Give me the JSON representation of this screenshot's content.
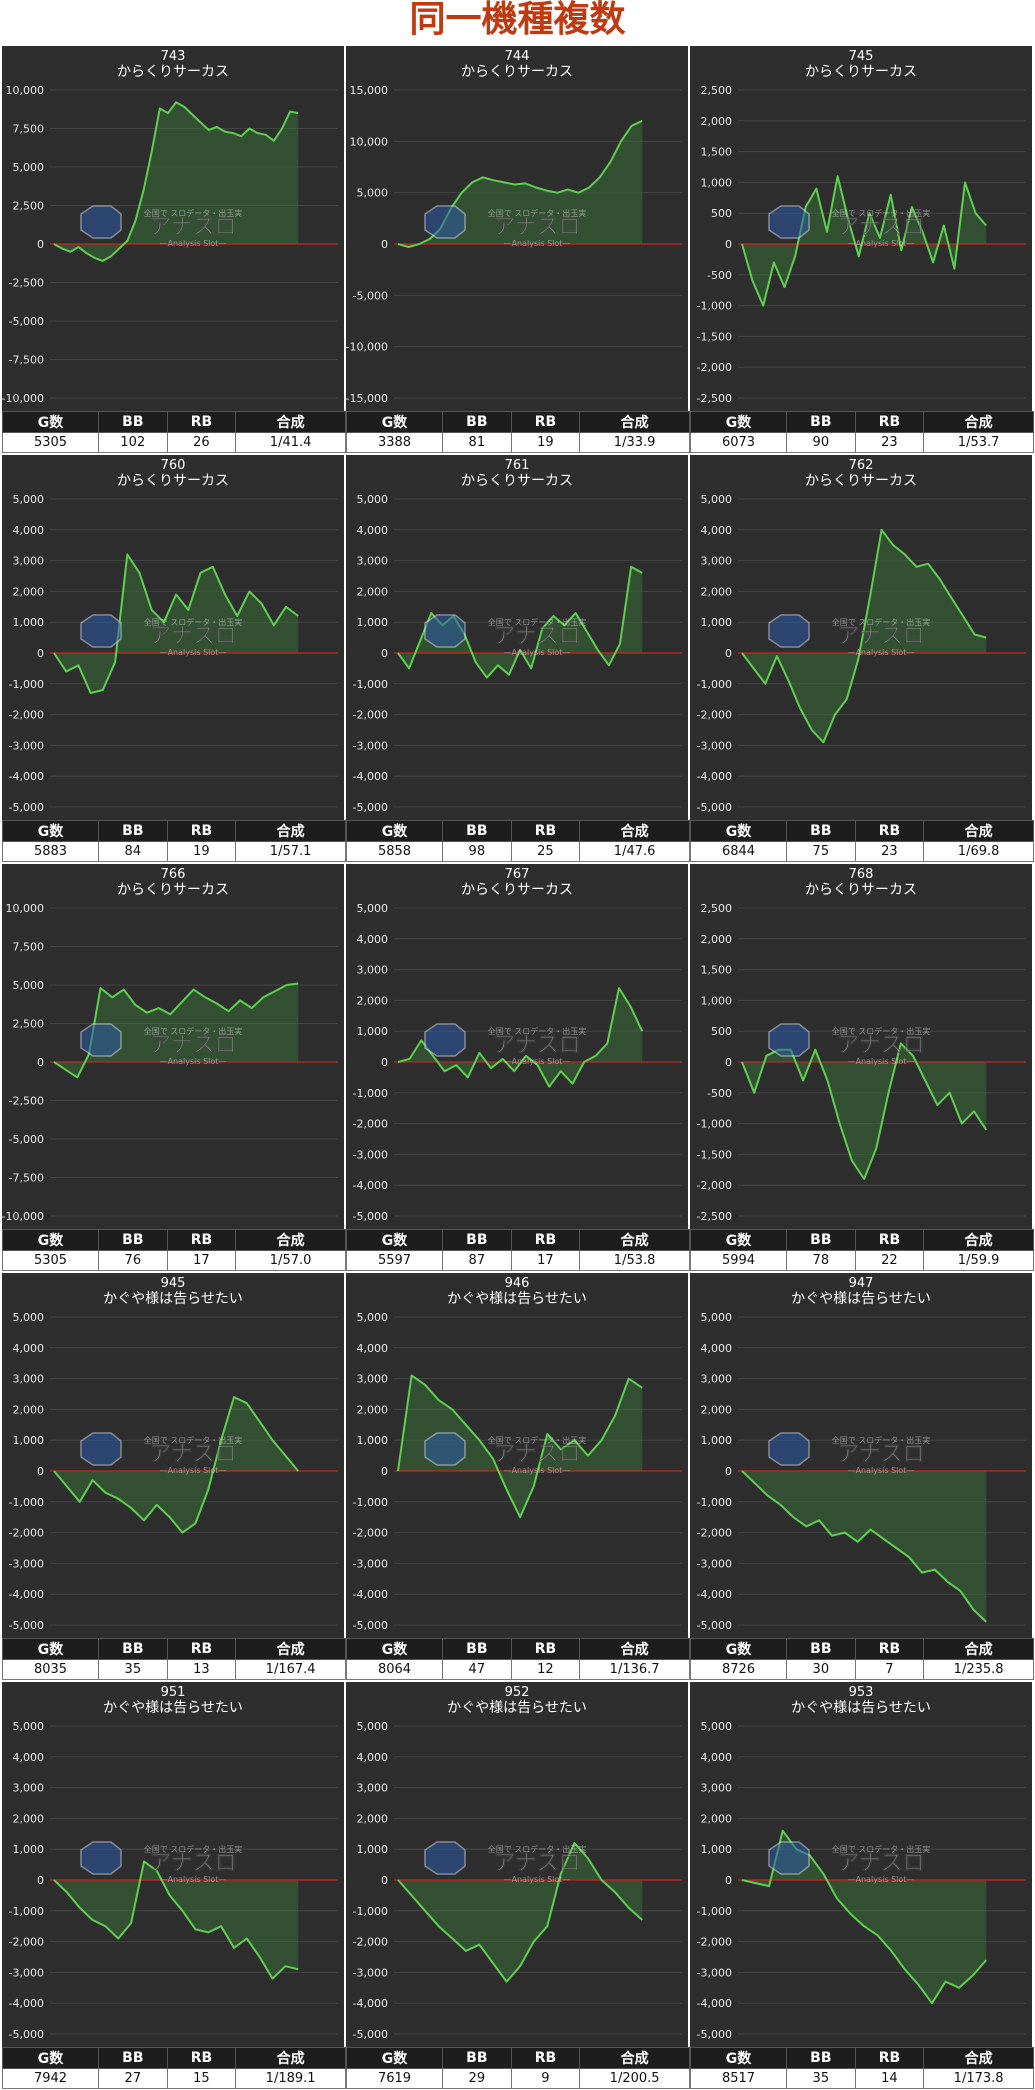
{
  "page": {
    "title": "同一機種複数"
  },
  "watermark": {
    "brand": "アナスロ",
    "tagline": "—Analysis Slot—",
    "caption": "全国で スロデータ・出玉実"
  },
  "stats_headers": [
    "G数",
    "BB",
    "RB",
    "合成"
  ],
  "colors": {
    "background": "#2e2e2e",
    "line": "#5ecf4f",
    "fill": "#3a7a3a",
    "zero_line": "#cc2222",
    "grid": "#444444"
  },
  "chart_data": [
    {
      "type": "area",
      "title": "743",
      "subtitle": "からくりサーカス",
      "ylim": [
        -10000,
        10000
      ],
      "yticks": [
        -10000,
        -7500,
        -5000,
        -2500,
        0,
        2500,
        5000,
        7500,
        10000
      ],
      "values": [
        0,
        -300,
        -500,
        -200,
        -600,
        -900,
        -1100,
        -800,
        -300,
        200,
        1500,
        3500,
        6000,
        8800,
        8500,
        9200,
        8900,
        8400,
        7900,
        7400,
        7600,
        7300,
        7200,
        7000,
        7500,
        7200,
        7100,
        6700,
        7500,
        8600,
        8500
      ],
      "stats": {
        "games": "5305",
        "bb": "102",
        "rb": "26",
        "ratio": "1/41.4"
      }
    },
    {
      "type": "area",
      "title": "744",
      "subtitle": "からくりサーカス",
      "ylim": [
        -15000,
        15000
      ],
      "yticks": [
        -15000,
        -10000,
        -5000,
        0,
        5000,
        10000,
        15000
      ],
      "values": [
        0,
        -300,
        0,
        500,
        1500,
        3500,
        5000,
        6000,
        6500,
        6200,
        6000,
        5800,
        5900,
        5500,
        5200,
        5000,
        5300,
        5000,
        5500,
        6500,
        8000,
        10000,
        11500,
        12000
      ],
      "stats": {
        "games": "3388",
        "bb": "81",
        "rb": "19",
        "ratio": "1/33.9"
      }
    },
    {
      "type": "area",
      "title": "745",
      "subtitle": "からくりサーカス",
      "ylim": [
        -2500,
        2500
      ],
      "yticks": [
        -2500,
        -2000,
        -1500,
        -1000,
        -500,
        0,
        500,
        1000,
        1500,
        2000,
        2500
      ],
      "values": [
        0,
        -600,
        -1000,
        -300,
        -700,
        -200,
        600,
        900,
        200,
        1100,
        400,
        -200,
        500,
        100,
        800,
        -100,
        600,
        200,
        -300,
        300,
        -400,
        1000,
        500,
        300
      ],
      "stats": {
        "games": "6073",
        "bb": "90",
        "rb": "23",
        "ratio": "1/53.7"
      }
    },
    {
      "type": "area",
      "title": "760",
      "subtitle": "からくりサーカス",
      "ylim": [
        -5000,
        5000
      ],
      "yticks": [
        -5000,
        -4000,
        -3000,
        -2000,
        -1000,
        0,
        1000,
        2000,
        3000,
        4000,
        5000
      ],
      "values": [
        0,
        -600,
        -400,
        -1300,
        -1200,
        -300,
        3200,
        2600,
        1400,
        1000,
        1900,
        1400,
        2600,
        2800,
        1900,
        1200,
        2000,
        1600,
        900,
        1500,
        1200
      ],
      "stats": {
        "games": "5883",
        "bb": "84",
        "rb": "19",
        "ratio": "1/57.1"
      }
    },
    {
      "type": "area",
      "title": "761",
      "subtitle": "からくりサーカス",
      "ylim": [
        -5000,
        5000
      ],
      "yticks": [
        -5000,
        -4000,
        -3000,
        -2000,
        -1000,
        0,
        1000,
        2000,
        3000,
        4000,
        5000
      ],
      "values": [
        0,
        -500,
        400,
        1300,
        900,
        1200,
        600,
        -300,
        -800,
        -400,
        -700,
        100,
        -500,
        800,
        1200,
        900,
        1300,
        700,
        100,
        -400,
        300,
        2800,
        2600
      ],
      "stats": {
        "games": "5858",
        "bb": "98",
        "rb": "25",
        "ratio": "1/47.6"
      }
    },
    {
      "type": "area",
      "title": "762",
      "subtitle": "からくりサーカス",
      "ylim": [
        -5000,
        5000
      ],
      "yticks": [
        -5000,
        -4000,
        -3000,
        -2000,
        -1000,
        0,
        1000,
        2000,
        3000,
        4000,
        5000
      ],
      "values": [
        0,
        -500,
        -1000,
        -100,
        -900,
        -1800,
        -2500,
        -2900,
        -2000,
        -1500,
        -200,
        1800,
        4000,
        3500,
        3200,
        2800,
        2900,
        2400,
        1800,
        1200,
        600,
        500
      ],
      "stats": {
        "games": "6844",
        "bb": "75",
        "rb": "23",
        "ratio": "1/69.8"
      }
    },
    {
      "type": "area",
      "title": "766",
      "subtitle": "からくりサーカス",
      "ylim": [
        -10000,
        10000
      ],
      "yticks": [
        -10000,
        -7500,
        -5000,
        -2500,
        0,
        2500,
        5000,
        7500,
        10000
      ],
      "values": [
        0,
        -500,
        -1000,
        500,
        4800,
        4200,
        4700,
        3700,
        3200,
        3500,
        3100,
        3900,
        4700,
        4200,
        3800,
        3300,
        4000,
        3500,
        4200,
        4600,
        5000,
        5100
      ],
      "stats": {
        "games": "5305",
        "bb": "76",
        "rb": "17",
        "ratio": "1/57.0"
      }
    },
    {
      "type": "area",
      "title": "767",
      "subtitle": "からくりサーカス",
      "ylim": [
        -5000,
        5000
      ],
      "yticks": [
        -5000,
        -4000,
        -3000,
        -2000,
        -1000,
        0,
        1000,
        2000,
        3000,
        4000,
        5000
      ],
      "values": [
        0,
        100,
        700,
        200,
        -300,
        -100,
        -500,
        300,
        -200,
        100,
        -300,
        200,
        -100,
        -800,
        -300,
        -700,
        0,
        200,
        600,
        2400,
        1800,
        1000
      ],
      "stats": {
        "games": "5597",
        "bb": "87",
        "rb": "17",
        "ratio": "1/53.8"
      }
    },
    {
      "type": "area",
      "title": "768",
      "subtitle": "からくりサーカス",
      "ylim": [
        -2500,
        2500
      ],
      "yticks": [
        -2500,
        -2000,
        -1500,
        -1000,
        -500,
        0,
        500,
        1000,
        1500,
        2000,
        2500
      ],
      "values": [
        0,
        -500,
        100,
        200,
        200,
        -300,
        200,
        -300,
        -1000,
        -1600,
        -1900,
        -1400,
        -500,
        300,
        100,
        -300,
        -700,
        -500,
        -1000,
        -800,
        -1100
      ],
      "stats": {
        "games": "5994",
        "bb": "78",
        "rb": "22",
        "ratio": "1/59.9"
      }
    },
    {
      "type": "area",
      "title": "945",
      "subtitle": "かぐや様は告らせたい",
      "ylim": [
        -5000,
        5000
      ],
      "yticks": [
        -5000,
        -4000,
        -3000,
        -2000,
        -1000,
        0,
        1000,
        2000,
        3000,
        4000,
        5000
      ],
      "values": [
        0,
        -500,
        -1000,
        -300,
        -700,
        -900,
        -1200,
        -1600,
        -1100,
        -1500,
        -2000,
        -1700,
        -600,
        1000,
        2400,
        2200,
        1600,
        1000,
        500,
        0
      ],
      "stats": {
        "games": "8035",
        "bb": "35",
        "rb": "13",
        "ratio": "1/167.4"
      }
    },
    {
      "type": "area",
      "title": "946",
      "subtitle": "かぐや様は告らせたい",
      "ylim": [
        -5000,
        5000
      ],
      "yticks": [
        -5000,
        -4000,
        -3000,
        -2000,
        -1000,
        0,
        1000,
        2000,
        3000,
        4000,
        5000
      ],
      "values": [
        0,
        3100,
        2800,
        2300,
        2000,
        1500,
        1000,
        400,
        -600,
        -1500,
        -500,
        1200,
        700,
        1000,
        500,
        1000,
        1800,
        3000,
        2700
      ],
      "stats": {
        "games": "8064",
        "bb": "47",
        "rb": "12",
        "ratio": "1/136.7"
      }
    },
    {
      "type": "area",
      "title": "947",
      "subtitle": "かぐや様は告らせたい",
      "ylim": [
        -5000,
        5000
      ],
      "yticks": [
        -5000,
        -4000,
        -3000,
        -2000,
        -1000,
        0,
        1000,
        2000,
        3000,
        4000,
        5000
      ],
      "values": [
        0,
        -400,
        -800,
        -1100,
        -1500,
        -1800,
        -1600,
        -2100,
        -2000,
        -2300,
        -1900,
        -2200,
        -2500,
        -2800,
        -3300,
        -3200,
        -3600,
        -3900,
        -4500,
        -4900
      ],
      "stats": {
        "games": "8726",
        "bb": "30",
        "rb": "7",
        "ratio": "1/235.8"
      }
    },
    {
      "type": "area",
      "title": "951",
      "subtitle": "かぐや様は告らせたい",
      "ylim": [
        -5000,
        5000
      ],
      "yticks": [
        -5000,
        -4000,
        -3000,
        -2000,
        -1000,
        0,
        1000,
        2000,
        3000,
        4000,
        5000
      ],
      "values": [
        0,
        -400,
        -900,
        -1300,
        -1500,
        -1900,
        -1400,
        600,
        300,
        -500,
        -1000,
        -1600,
        -1700,
        -1500,
        -2200,
        -1900,
        -2500,
        -3200,
        -2800,
        -2900
      ],
      "stats": {
        "games": "7942",
        "bb": "27",
        "rb": "15",
        "ratio": "1/189.1"
      }
    },
    {
      "type": "area",
      "title": "952",
      "subtitle": "かぐや様は告らせたい",
      "ylim": [
        -5000,
        5000
      ],
      "yticks": [
        -5000,
        -4000,
        -3000,
        -2000,
        -1000,
        0,
        1000,
        2000,
        3000,
        4000,
        5000
      ],
      "values": [
        0,
        -500,
        -1000,
        -1500,
        -1900,
        -2300,
        -2100,
        -2700,
        -3300,
        -2800,
        -2000,
        -1500,
        200,
        1200,
        700,
        0,
        -400,
        -900,
        -1300
      ],
      "stats": {
        "games": "7619",
        "bb": "29",
        "rb": "9",
        "ratio": "1/200.5"
      }
    },
    {
      "type": "area",
      "title": "953",
      "subtitle": "かぐや様は告らせたい",
      "ylim": [
        -5000,
        5000
      ],
      "yticks": [
        -5000,
        -4000,
        -3000,
        -2000,
        -1000,
        0,
        1000,
        2000,
        3000,
        4000,
        5000
      ],
      "values": [
        0,
        -100,
        -200,
        1600,
        1000,
        800,
        200,
        -600,
        -1100,
        -1500,
        -1800,
        -2300,
        -2900,
        -3400,
        -4000,
        -3300,
        -3500,
        -3100,
        -2600
      ],
      "stats": {
        "games": "8517",
        "bb": "35",
        "rb": "14",
        "ratio": "1/173.8"
      }
    }
  ]
}
